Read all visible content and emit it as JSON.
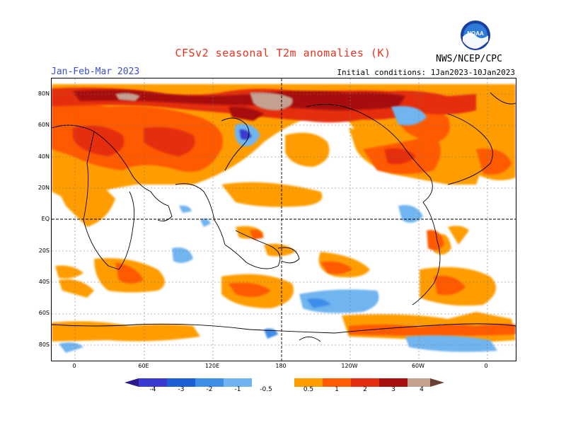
{
  "title": "CFSv2 seasonal T2m anomalies (K)",
  "season": "Jan-Feb-Mar 2023",
  "initial_conditions": "Initial conditions: 1Jan2023-10Jan2023",
  "agency": "NWS/NCEP/CPC",
  "logo_text": "NOAA",
  "lat_labels": [
    "80N",
    "60N",
    "40N",
    "20N",
    "EQ",
    "20S",
    "40S",
    "60S",
    "80S"
  ],
  "lon_labels": [
    "0",
    "60E",
    "120E",
    "180",
    "120W",
    "60W",
    "0"
  ],
  "colorbar": {
    "levels": [
      "-4",
      "-3",
      "-2",
      "-1",
      "-0.5",
      "0.5",
      "1",
      "2",
      "3",
      "4"
    ],
    "colors": {
      "lt_m4": "#2a1a8a",
      "m4_m3": "#3a3ad0",
      "m3_m2": "#1e5fd6",
      "m2_m1": "#3e8ee8",
      "m1_m05": "#6fb4f0",
      "neutral": "#ffffff",
      "p05_p1": "#ff9d00",
      "p1_p2": "#ff5a00",
      "p2_p3": "#e42d10",
      "p3_p4": "#a81010",
      "p4_p5": "#c4a090",
      "gt_p5": "#6a4030"
    }
  }
}
